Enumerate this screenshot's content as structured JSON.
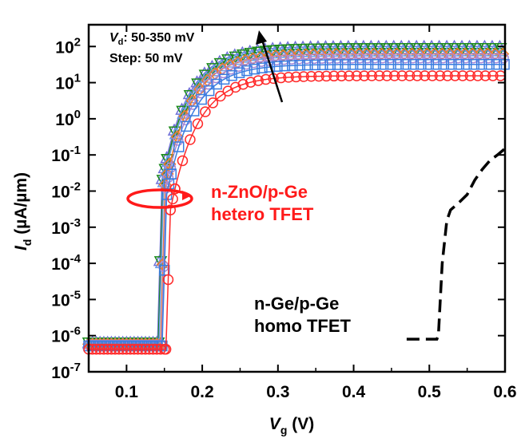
{
  "chart_data": {
    "type": "line",
    "x_axis": {
      "label_main": "V",
      "label_sub": "g",
      "label_unit": " (V)",
      "range": [
        0.05,
        0.6
      ],
      "ticks": [
        {
          "value": 0.1,
          "label": "0.1"
        },
        {
          "value": 0.2,
          "label": "0.2"
        },
        {
          "value": 0.3,
          "label": "0.3"
        },
        {
          "value": 0.4,
          "label": "0.4"
        },
        {
          "value": 0.5,
          "label": "0.5"
        },
        {
          "value": 0.6,
          "label": "0.6"
        }
      ]
    },
    "y_axis": {
      "label_main": "I",
      "label_sub": "d",
      "label_unit": " (µA/µm)",
      "scale": "log",
      "range": [
        1e-07,
        400
      ],
      "ticks": [
        {
          "value": 1e-07,
          "base": "10",
          "exp": "-7"
        },
        {
          "value": 1e-06,
          "base": "10",
          "exp": "-6"
        },
        {
          "value": 1e-05,
          "base": "10",
          "exp": "-5"
        },
        {
          "value": 0.0001,
          "base": "10",
          "exp": "-4"
        },
        {
          "value": 0.001,
          "base": "10",
          "exp": "-3"
        },
        {
          "value": 0.01,
          "base": "10",
          "exp": "-2"
        },
        {
          "value": 0.1,
          "base": "10",
          "exp": "-1"
        },
        {
          "value": 1,
          "base": "10",
          "exp": "0"
        },
        {
          "value": 10,
          "base": "10",
          "exp": "1"
        },
        {
          "value": 100,
          "base": "10",
          "exp": "2"
        }
      ]
    },
    "grid": false,
    "annotations": {
      "vd_main": "V",
      "vd_sub": "d",
      "vd_rest": ": 50-350 mV",
      "step": "Step: 50 mV",
      "hetero_line1": "n-ZnO/p-Ge",
      "hetero_line2": "hetero TFET",
      "homo_line1": "n-Ge/p-Ge",
      "homo_line2": "homo TFET"
    },
    "hetero_series": [
      {
        "vd_mV": 50,
        "color": "#ff2a2a",
        "marker": "circle",
        "off": 4.2e-07,
        "von": 0.152,
        "knee": 0.003,
        "sat": 15.5
      },
      {
        "vd_mV": 100,
        "color": "#3a7de0",
        "marker": "square",
        "off": 5.2e-07,
        "von": 0.147,
        "knee": 0.008,
        "sat": 32
      },
      {
        "vd_mV": 150,
        "color": "#a88ad8",
        "marker": "circle",
        "off": 5.5e-07,
        "von": 0.146,
        "knee": 0.012,
        "sat": 48
      },
      {
        "vd_mV": 200,
        "color": "#f07828",
        "marker": "diamond",
        "off": 5.8e-07,
        "von": 0.145,
        "knee": 0.015,
        "sat": 62
      },
      {
        "vd_mV": 250,
        "color": "#6a9ae8",
        "marker": "triangle-up",
        "off": 6e-07,
        "von": 0.143,
        "knee": 0.018,
        "sat": 75
      },
      {
        "vd_mV": 300,
        "color": "#1a8a1a",
        "marker": "triangle-down",
        "off": 6.3e-07,
        "von": 0.142,
        "knee": 0.02,
        "sat": 88
      },
      {
        "vd_mV": 350,
        "color": "#6f6fd8",
        "marker": "triangle-up",
        "off": 6.5e-07,
        "von": 0.141,
        "knee": 0.022,
        "sat": 100
      }
    ],
    "homo_curve": {
      "color": "#000000",
      "dash": true,
      "points": [
        [
          0.47,
          8e-07
        ],
        [
          0.51,
          8e-07
        ],
        [
          0.512,
          1e-06
        ],
        [
          0.517,
          0.0001
        ],
        [
          0.523,
          0.0015
        ],
        [
          0.528,
          0.003
        ],
        [
          0.54,
          0.005
        ],
        [
          0.55,
          0.008
        ],
        [
          0.56,
          0.02
        ],
        [
          0.57,
          0.04
        ],
        [
          0.58,
          0.07
        ],
        [
          0.59,
          0.1
        ],
        [
          0.6,
          0.15
        ]
      ]
    }
  }
}
